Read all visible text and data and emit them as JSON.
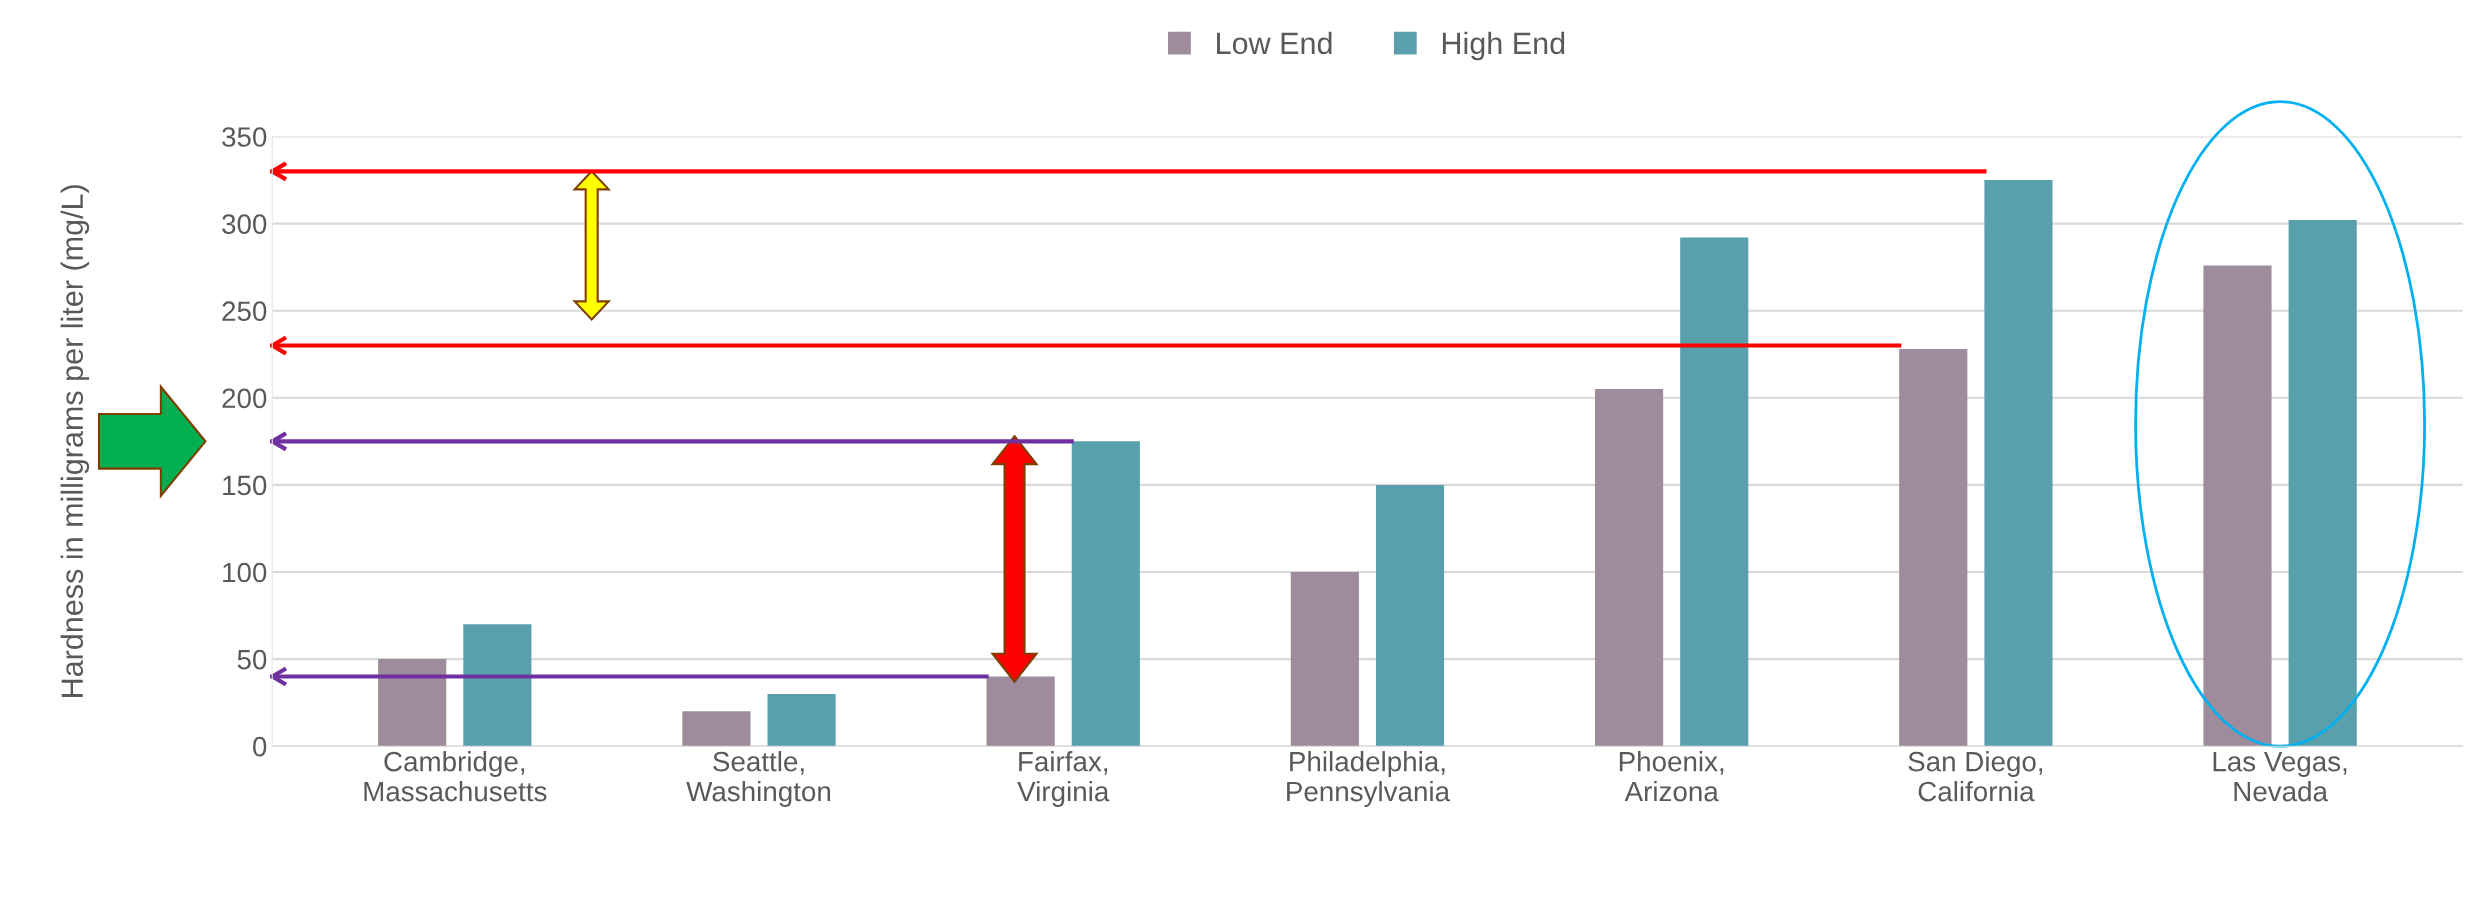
{
  "chart_data": {
    "type": "bar",
    "ylabel": "Hardness in milligrams per liter (mg/L)",
    "categories": [
      "Cambridge,\nMassachusetts",
      "Seattle,\nWashington",
      "Fairfax,\nVirginia",
      "Philadelphia,\nPennsylvania",
      "Phoenix,\nArizona",
      "San Diego,\nCalifornia",
      "Las Vegas,\nNevada"
    ],
    "series": [
      {
        "name": "Low End",
        "color": "#9e8c9c",
        "values": [
          50,
          20,
          40,
          100,
          205,
          228,
          276
        ]
      },
      {
        "name": "High End",
        "color": "#5aa0ac",
        "values": [
          70,
          30,
          175,
          150,
          292,
          325,
          302
        ]
      }
    ],
    "ylim": [
      0,
      350
    ],
    "yticks": [
      0,
      50,
      100,
      150,
      200,
      250,
      300,
      350
    ],
    "grid": "y",
    "legend": "top",
    "ref_lines": [
      {
        "axis": "y",
        "value": 330,
        "color": "#ff0000"
      },
      {
        "axis": "y",
        "value": 230,
        "color": "#ff0000"
      },
      {
        "axis": "y",
        "value": 175,
        "color": "#7030a0"
      },
      {
        "axis": "y",
        "value": 40,
        "color": "#7030a0"
      }
    ]
  }
}
